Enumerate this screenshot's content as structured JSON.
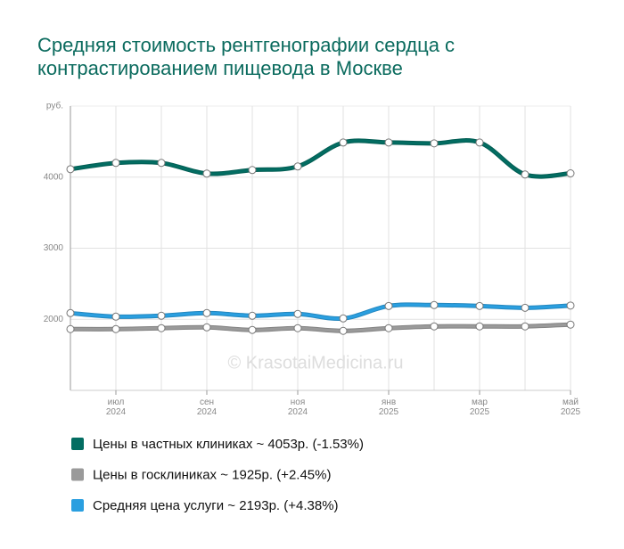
{
  "chart_data": {
    "type": "line",
    "title": "Средняя стоимость рентгенографии сердца с контрастированием пищевода в Москве",
    "y_unit": "руб.",
    "watermark": "© KrasotaiMedicina.ru",
    "categories": [
      null,
      "июл 2024",
      null,
      "сен 2024",
      null,
      "ноя 2024",
      null,
      "янв 2025",
      null,
      "мар 2025",
      null,
      "май 2025"
    ],
    "series": [
      {
        "name": "Цены в частных клиниках ~ 4053р. (-1.53%)",
        "color": "#036d62",
        "values": [
          4112,
          4200,
          4200,
          4050,
          4100,
          4150,
          4487,
          4487,
          4475,
          4487,
          4037,
          4053
        ]
      },
      {
        "name": "Цены в госклиниках ~ 1925р. (+2.45%)",
        "color": "#9a9a9a",
        "values": [
          1862,
          1862,
          1875,
          1887,
          1850,
          1875,
          1837,
          1875,
          1900,
          1900,
          1900,
          1925
        ]
      },
      {
        "name": "Средняя цена услуги ~ 2193р. (+4.38%)",
        "color": "#2a9fe0",
        "values": [
          2087,
          2037,
          2050,
          2087,
          2050,
          2075,
          2012,
          2187,
          2200,
          2187,
          2162,
          2193
        ]
      }
    ],
    "ylim": [
      1000,
      5000
    ],
    "yticks": [
      2000,
      3000,
      4000
    ],
    "grid": true
  }
}
